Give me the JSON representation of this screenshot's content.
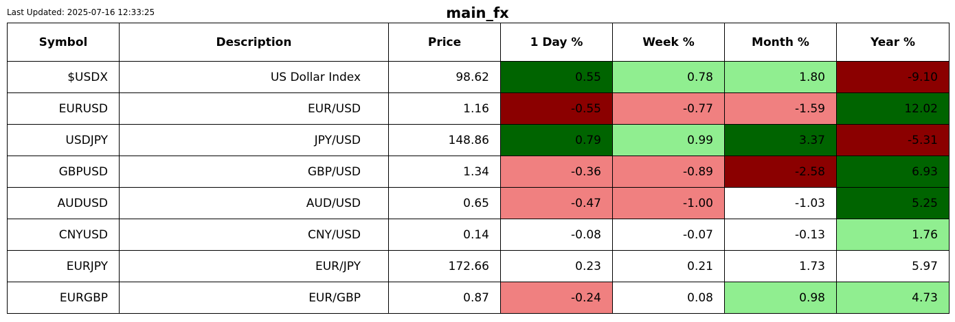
{
  "header": {
    "last_updated": "Last Updated: 2025-07-16 12:33:25",
    "title": "main_fx"
  },
  "colors": {
    "strong_up": "#006400",
    "mild_up": "#90ee90",
    "mild_down": "#f08080",
    "strong_down": "#8b0000",
    "neutral": "#ffffff"
  },
  "chart_data": {
    "type": "table",
    "title": "main_fx",
    "columns": [
      "Symbol",
      "Description",
      "Price",
      "1 Day %",
      "Week %",
      "Month %",
      "Year %"
    ],
    "rows": [
      {
        "symbol": "$USDX",
        "description": "US Dollar Index",
        "price": "98.62",
        "day": "0.55",
        "week": "0.78",
        "month": "1.80",
        "year": "-9.10",
        "colors": [
          "strong_up",
          "mild_up",
          "mild_up",
          "strong_down"
        ]
      },
      {
        "symbol": "EURUSD",
        "description": "EUR/USD",
        "price": "1.16",
        "day": "-0.55",
        "week": "-0.77",
        "month": "-1.59",
        "year": "12.02",
        "colors": [
          "strong_down",
          "mild_down",
          "mild_down",
          "strong_up"
        ]
      },
      {
        "symbol": "USDJPY",
        "description": "JPY/USD",
        "price": "148.86",
        "day": "0.79",
        "week": "0.99",
        "month": "3.37",
        "year": "-5.31",
        "colors": [
          "strong_up",
          "mild_up",
          "strong_up",
          "strong_down"
        ]
      },
      {
        "symbol": "GBPUSD",
        "description": "GBP/USD",
        "price": "1.34",
        "day": "-0.36",
        "week": "-0.89",
        "month": "-2.58",
        "year": "6.93",
        "colors": [
          "mild_down",
          "mild_down",
          "strong_down",
          "strong_up"
        ]
      },
      {
        "symbol": "AUDUSD",
        "description": "AUD/USD",
        "price": "0.65",
        "day": "-0.47",
        "week": "-1.00",
        "month": "-1.03",
        "year": "5.25",
        "colors": [
          "mild_down",
          "mild_down",
          "neutral",
          "strong_up"
        ]
      },
      {
        "symbol": "CNYUSD",
        "description": "CNY/USD",
        "price": "0.14",
        "day": "-0.08",
        "week": "-0.07",
        "month": "-0.13",
        "year": "1.76",
        "colors": [
          "neutral",
          "neutral",
          "neutral",
          "mild_up"
        ]
      },
      {
        "symbol": "EURJPY",
        "description": "EUR/JPY",
        "price": "172.66",
        "day": "0.23",
        "week": "0.21",
        "month": "1.73",
        "year": "5.97",
        "colors": [
          "neutral",
          "neutral",
          "neutral",
          "neutral"
        ]
      },
      {
        "symbol": "EURGBP",
        "description": "EUR/GBP",
        "price": "0.87",
        "day": "-0.24",
        "week": "0.08",
        "month": "0.98",
        "year": "4.73",
        "colors": [
          "mild_down",
          "neutral",
          "mild_up",
          "mild_up"
        ]
      }
    ]
  }
}
